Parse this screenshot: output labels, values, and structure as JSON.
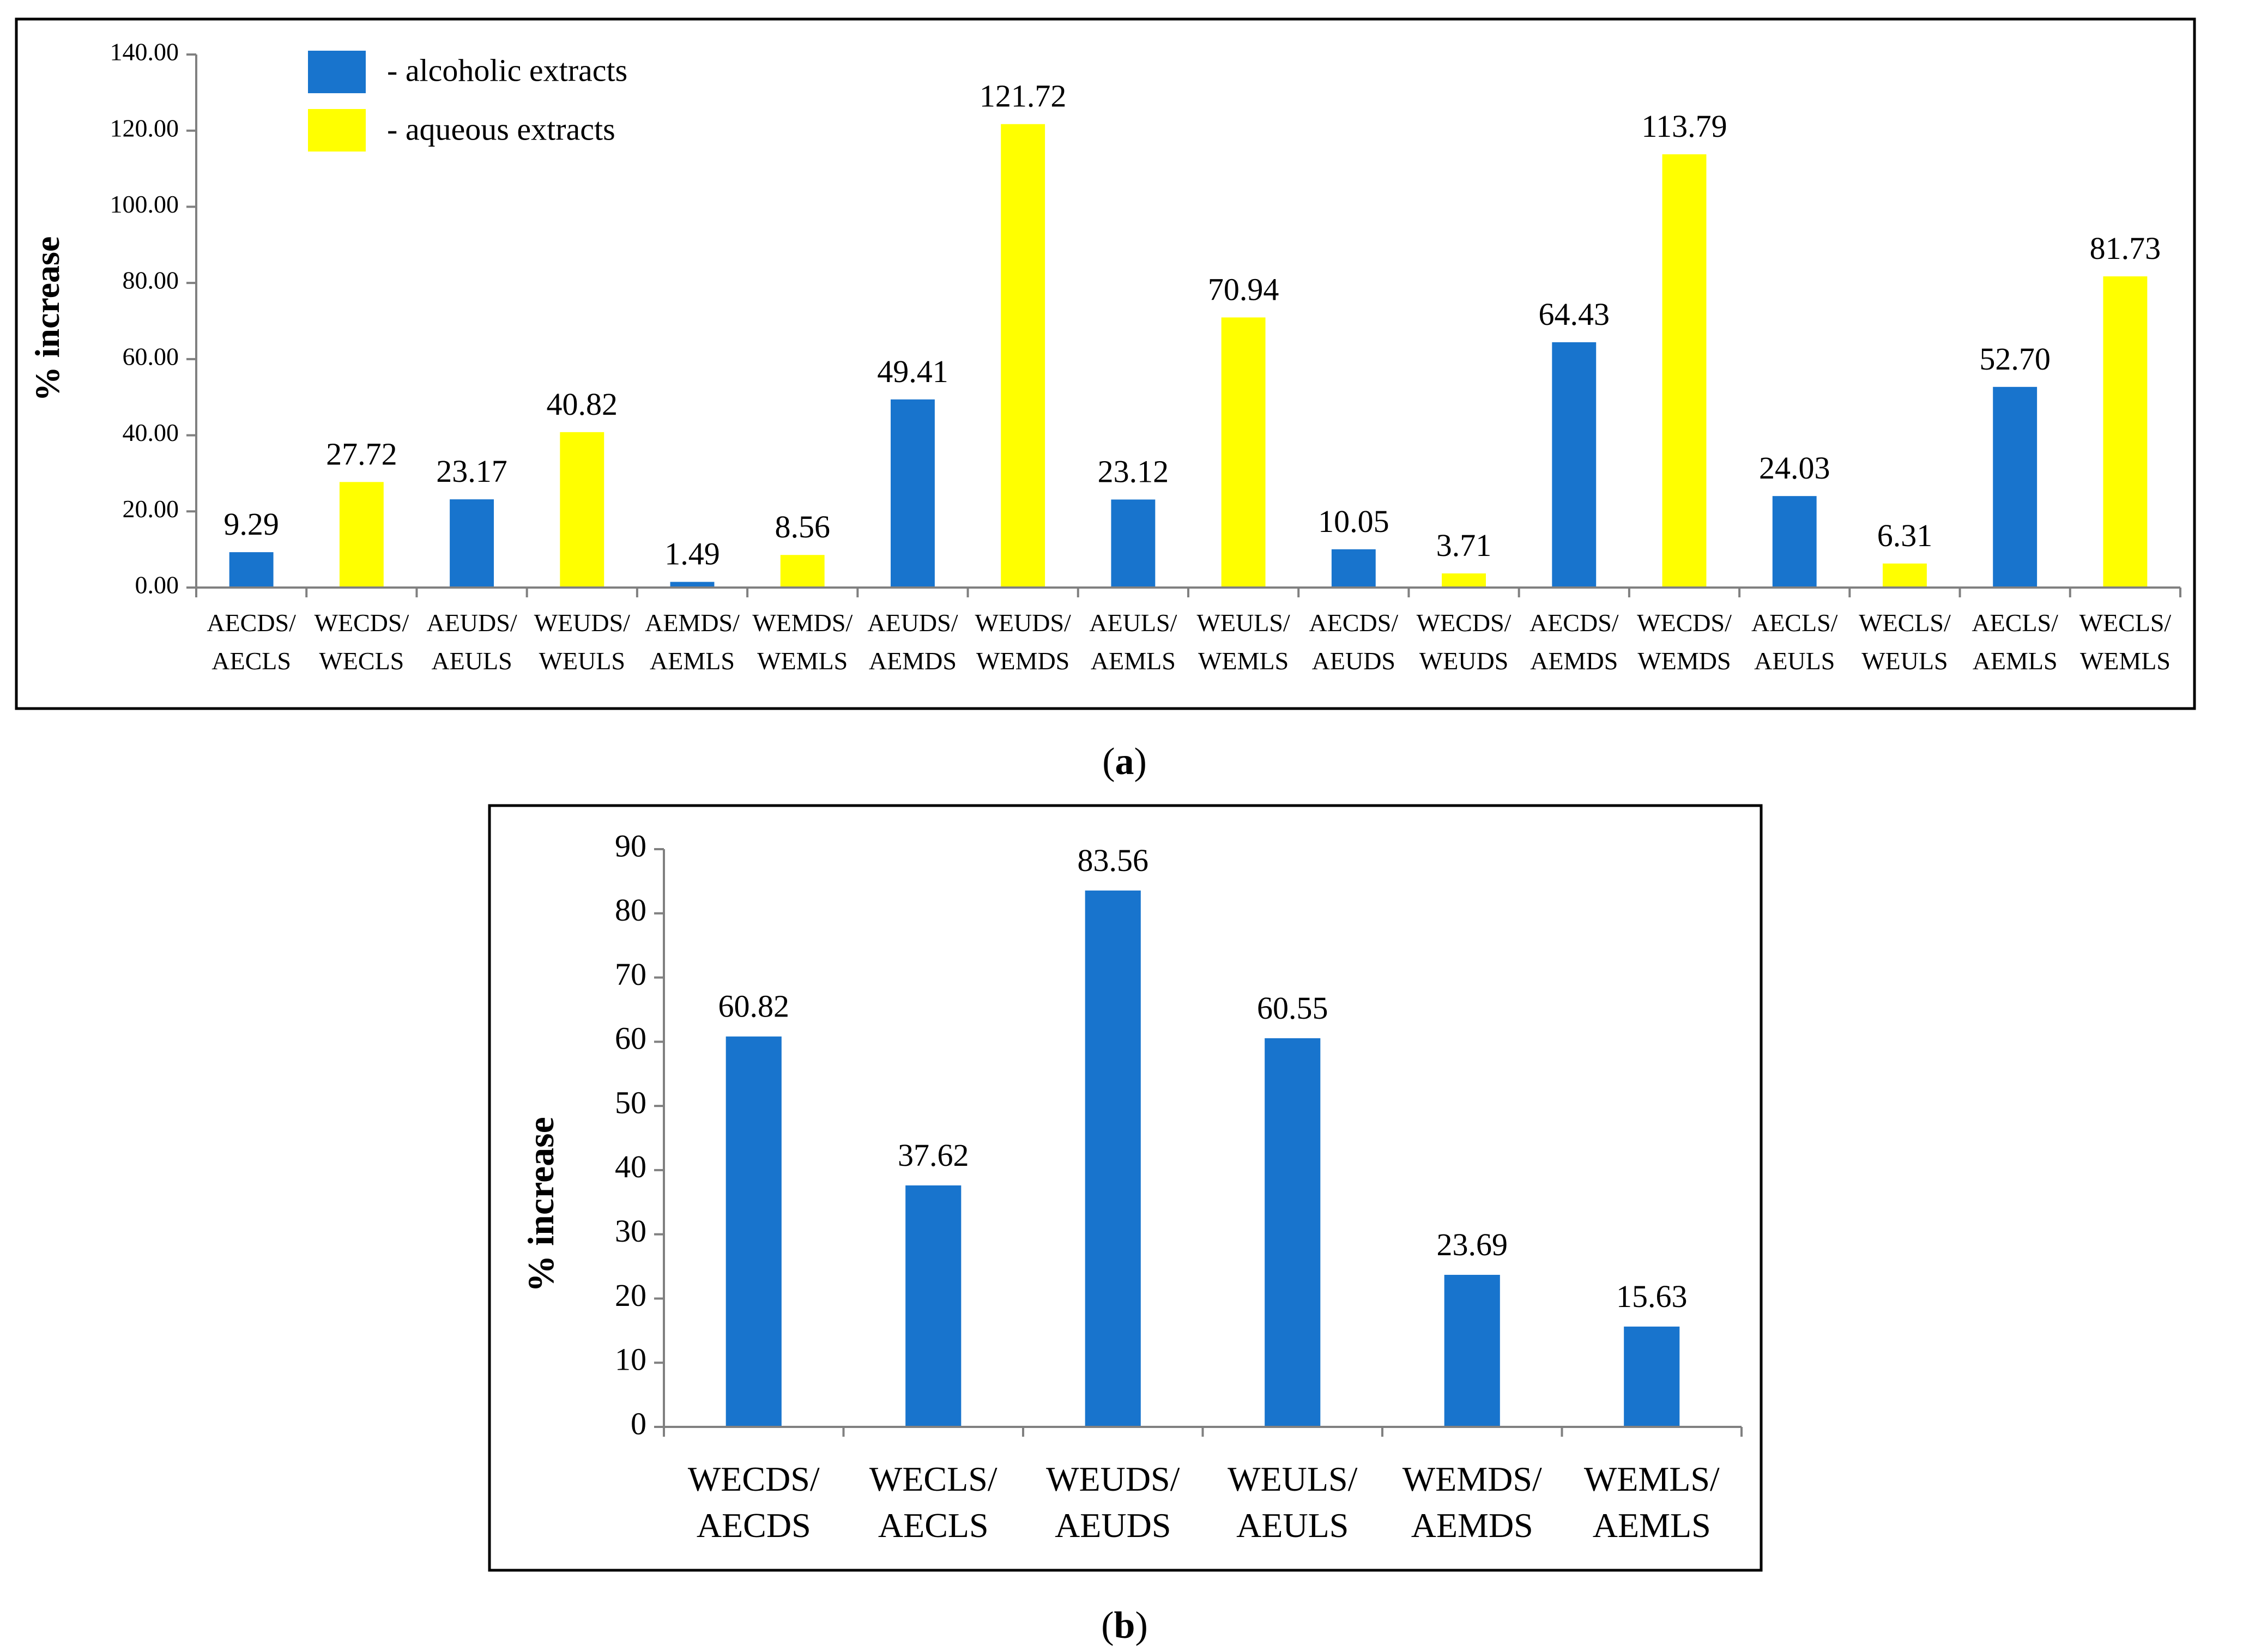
{
  "colors": {
    "alcoholic": "#1874CD",
    "aqueous": "#FFFF00",
    "axis": "#808080",
    "frame": "#000000",
    "text": "#000000"
  },
  "chart_data": [
    {
      "id": "a",
      "type": "bar",
      "caption_letter": "a",
      "ylabel": "% increase",
      "ylim": [
        0,
        140
      ],
      "yticks": [
        "0.00",
        "20.00",
        "40.00",
        "60.00",
        "80.00",
        "100.00",
        "120.00",
        "140.00"
      ],
      "legend": [
        {
          "label": "- alcoholic extracts",
          "color_key": "alcoholic"
        },
        {
          "label": "- aqueous extracts",
          "color_key": "aqueous"
        }
      ],
      "bars": [
        {
          "top": "AECDS/",
          "bottom": "AECLS",
          "value": 9.29,
          "label": "9.29",
          "color_key": "alcoholic"
        },
        {
          "top": "WECDS/",
          "bottom": "WECLS",
          "value": 27.72,
          "label": "27.72",
          "color_key": "aqueous"
        },
        {
          "top": "AEUDS/",
          "bottom": "AEULS",
          "value": 23.17,
          "label": "23.17",
          "color_key": "alcoholic"
        },
        {
          "top": "WEUDS/",
          "bottom": "WEULS",
          "value": 40.82,
          "label": "40.82",
          "color_key": "aqueous"
        },
        {
          "top": "AEMDS/",
          "bottom": "AEMLS",
          "value": 1.49,
          "label": "1.49",
          "color_key": "alcoholic"
        },
        {
          "top": "WEMDS/",
          "bottom": "WEMLS",
          "value": 8.56,
          "label": "8.56",
          "color_key": "aqueous"
        },
        {
          "top": "AEUDS/",
          "bottom": "AEMDS",
          "value": 49.41,
          "label": "49.41",
          "color_key": "alcoholic"
        },
        {
          "top": "WEUDS/",
          "bottom": "WEMDS",
          "value": 121.72,
          "label": "121.72",
          "color_key": "aqueous"
        },
        {
          "top": "AEULS/",
          "bottom": "AEMLS",
          "value": 23.12,
          "label": "23.12",
          "color_key": "alcoholic"
        },
        {
          "top": "WEULS/",
          "bottom": "WEMLS",
          "value": 70.94,
          "label": "70.94",
          "color_key": "aqueous"
        },
        {
          "top": "AECDS/",
          "bottom": "AEUDS",
          "value": 10.05,
          "label": "10.05",
          "color_key": "alcoholic"
        },
        {
          "top": "WECDS/",
          "bottom": "WEUDS",
          "value": 3.71,
          "label": "3.71",
          "color_key": "aqueous"
        },
        {
          "top": "AECDS/",
          "bottom": "AEMDS",
          "value": 64.43,
          "label": "64.43",
          "color_key": "alcoholic"
        },
        {
          "top": "WECDS/",
          "bottom": "WEMDS",
          "value": 113.79,
          "label": "113.79",
          "color_key": "aqueous"
        },
        {
          "top": "AECLS/",
          "bottom": "AEULS",
          "value": 24.03,
          "label": "24.03",
          "color_key": "alcoholic"
        },
        {
          "top": "WECLS/",
          "bottom": "WEULS",
          "value": 6.31,
          "label": "6.31",
          "color_key": "aqueous"
        },
        {
          "top": "AECLS/",
          "bottom": "AEMLS",
          "value": 52.7,
          "label": "52.70",
          "color_key": "alcoholic"
        },
        {
          "top": "WECLS/",
          "bottom": "WEMLS",
          "value": 81.73,
          "label": "81.73",
          "color_key": "aqueous"
        }
      ]
    },
    {
      "id": "b",
      "type": "bar",
      "caption_letter": "b",
      "ylabel": "% increase",
      "ylim": [
        0,
        90
      ],
      "yticks": [
        "0",
        "10",
        "20",
        "30",
        "40",
        "50",
        "60",
        "70",
        "80",
        "90"
      ],
      "legend": [],
      "bars": [
        {
          "top": "WECDS/",
          "bottom": "AECDS",
          "value": 60.82,
          "label": "60.82",
          "color_key": "alcoholic"
        },
        {
          "top": "WECLS/",
          "bottom": "AECLS",
          "value": 37.62,
          "label": "37.62",
          "color_key": "alcoholic"
        },
        {
          "top": "WEUDS/",
          "bottom": "AEUDS",
          "value": 83.56,
          "label": "83.56",
          "color_key": "alcoholic"
        },
        {
          "top": "WEULS/",
          "bottom": "AEULS",
          "value": 60.55,
          "label": "60.55",
          "color_key": "alcoholic"
        },
        {
          "top": "WEMDS/",
          "bottom": "AEMDS",
          "value": 23.69,
          "label": "23.69",
          "color_key": "alcoholic"
        },
        {
          "top": "WEMLS/",
          "bottom": "AEMLS",
          "value": 15.63,
          "label": "15.63",
          "color_key": "alcoholic"
        }
      ]
    }
  ]
}
